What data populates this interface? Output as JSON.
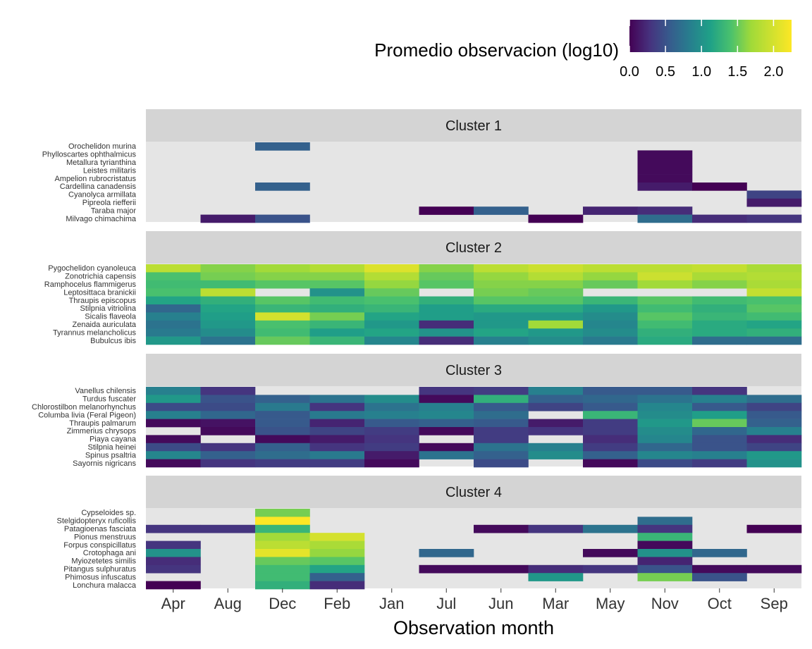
{
  "chart_data": {
    "type": "heatmap",
    "xlabel": "Observation month",
    "months": [
      "Apr",
      "Aug",
      "Dec",
      "Feb",
      "Jan",
      "Jul",
      "Jun",
      "Mar",
      "May",
      "Nov",
      "Oct",
      "Sep"
    ],
    "legend": {
      "title": "Promedio  observacion (log10)",
      "ticks": [
        "0.0",
        "0.5",
        "1.0",
        "1.5",
        "2.0"
      ],
      "tick_values": [
        0,
        0.5,
        1.0,
        1.5,
        2.0
      ],
      "range": [
        0,
        2.25
      ],
      "colormap": "viridis",
      "placement": "top-right"
    },
    "missing_color": "#e5e5e5",
    "strip_color": "#d4d4d4",
    "clusters": [
      {
        "title": "Cluster 1",
        "species": [
          "Orochelidon murina",
          "Phylloscartes ophthalmicus",
          "Metallura tyrianthina",
          "Leistes militaris",
          "Ampelion rubrocristatus",
          "Cardellina canadensis",
          "Cyanolyca armillata",
          "Pipreola riefferii",
          "Taraba major",
          "Milvago chimachima"
        ],
        "values": [
          [
            null,
            null,
            0.6,
            null,
            null,
            null,
            null,
            null,
            null,
            null,
            null,
            null
          ],
          [
            null,
            null,
            null,
            null,
            null,
            null,
            null,
            null,
            null,
            0.05,
            null,
            null
          ],
          [
            null,
            null,
            null,
            null,
            null,
            null,
            null,
            null,
            null,
            0.05,
            null,
            null
          ],
          [
            null,
            null,
            null,
            null,
            null,
            null,
            null,
            null,
            null,
            0.05,
            null,
            null
          ],
          [
            null,
            null,
            null,
            null,
            null,
            null,
            null,
            null,
            null,
            0.05,
            null,
            null
          ],
          [
            null,
            null,
            0.6,
            null,
            null,
            null,
            null,
            null,
            null,
            0.15,
            0.0,
            null
          ],
          [
            null,
            null,
            null,
            null,
            null,
            null,
            null,
            null,
            null,
            null,
            null,
            0.4
          ],
          [
            null,
            null,
            null,
            null,
            null,
            null,
            null,
            null,
            null,
            null,
            null,
            0.15
          ],
          [
            null,
            null,
            null,
            null,
            null,
            0.0,
            0.6,
            null,
            0.2,
            0.25,
            null,
            null
          ],
          [
            null,
            0.15,
            0.5,
            null,
            null,
            null,
            null,
            0.0,
            null,
            0.7,
            0.25,
            0.3
          ]
        ]
      },
      {
        "title": "Cluster 2",
        "species": [
          "Pygochelidon cyanoleuca",
          "Zonotrichia capensis",
          "Ramphocelus flammigerus",
          "Leptosittaca branickii",
          "Thraupis episcopus",
          "Stilpnia vitriolina",
          "Sicalis flaveola",
          "Zenaida auriculata",
          "Tyrannus melancholicus",
          "Bubulcus ibis"
        ],
        "values": [
          [
            1.85,
            1.6,
            1.7,
            1.8,
            2.05,
            1.6,
            1.85,
            1.95,
            1.85,
            1.85,
            1.9,
            1.75
          ],
          [
            1.4,
            1.55,
            1.6,
            1.6,
            1.8,
            1.5,
            1.65,
            1.8,
            1.65,
            1.95,
            1.75,
            1.8
          ],
          [
            1.35,
            1.35,
            1.45,
            1.45,
            1.65,
            1.45,
            1.6,
            1.6,
            1.5,
            1.7,
            1.6,
            1.75
          ],
          [
            1.4,
            1.85,
            null,
            1.0,
            1.5,
            null,
            1.55,
            1.5,
            null,
            null,
            null,
            1.9
          ],
          [
            1.15,
            1.25,
            1.45,
            1.35,
            1.4,
            1.25,
            1.45,
            1.45,
            1.3,
            1.45,
            1.35,
            1.4
          ],
          [
            0.65,
            1.15,
            1.3,
            1.25,
            1.3,
            1.1,
            1.2,
            1.2,
            1.05,
            1.35,
            1.25,
            1.45
          ],
          [
            0.85,
            1.1,
            2.0,
            1.55,
            1.15,
            1.1,
            1.05,
            1.05,
            0.95,
            1.45,
            1.3,
            1.35
          ],
          [
            0.75,
            1.05,
            1.4,
            1.3,
            1.05,
            0.25,
            1.05,
            1.7,
            0.9,
            1.35,
            1.2,
            1.15
          ],
          [
            0.8,
            0.95,
            1.35,
            1.1,
            1.15,
            1.0,
            1.15,
            1.05,
            0.95,
            1.25,
            1.2,
            1.25
          ],
          [
            1.05,
            0.75,
            1.5,
            1.3,
            0.9,
            0.25,
            0.85,
            0.95,
            0.8,
            1.2,
            0.7,
            0.7
          ]
        ]
      },
      {
        "title": "Cluster 3",
        "species": [
          "Vanellus chilensis",
          "Turdus fuscater",
          "Chlorostilbon melanorhynchus",
          "Columba livia (Feral Pigeon)",
          "Thraupis palmarum",
          "Zimmerius chrysops",
          "Piaya cayana",
          "Stilpnia heinei",
          "Spinus psaltria",
          "Sayornis nigricans"
        ],
        "values": [
          [
            0.85,
            0.3,
            null,
            null,
            null,
            0.3,
            0.35,
            0.85,
            0.55,
            0.55,
            0.3,
            null
          ],
          [
            1.05,
            0.5,
            0.6,
            0.75,
            0.95,
            0.05,
            1.25,
            0.6,
            0.65,
            0.75,
            0.85,
            0.7
          ],
          [
            0.45,
            0.45,
            0.8,
            0.3,
            0.75,
            0.85,
            0.55,
            0.4,
            0.55,
            0.9,
            0.55,
            0.4
          ],
          [
            0.85,
            0.65,
            0.55,
            0.8,
            0.85,
            0.9,
            0.7,
            null,
            1.3,
            0.95,
            1.1,
            0.55
          ],
          [
            0.05,
            0.1,
            0.55,
            0.2,
            0.55,
            0.6,
            0.55,
            0.15,
            0.35,
            1.05,
            1.5,
            0.6
          ],
          [
            null,
            0.05,
            0.5,
            0.4,
            0.35,
            0.05,
            0.35,
            0.3,
            0.35,
            0.95,
            0.65,
            0.85
          ],
          [
            0.05,
            null,
            0.05,
            0.15,
            0.3,
            null,
            0.35,
            null,
            0.25,
            0.9,
            0.5,
            0.25
          ],
          [
            0.45,
            0.3,
            0.6,
            0.3,
            0.35,
            0.05,
            0.75,
            0.85,
            0.35,
            0.65,
            0.5,
            0.4
          ],
          [
            0.9,
            0.6,
            0.7,
            0.8,
            0.15,
            0.75,
            0.6,
            0.95,
            0.6,
            0.9,
            0.85,
            1.05
          ],
          [
            0.05,
            0.3,
            0.35,
            0.35,
            0.05,
            null,
            0.45,
            null,
            0.05,
            0.45,
            0.35,
            1.0
          ]
        ]
      },
      {
        "title": "Cluster 4",
        "species": [
          "Cypseloides sp.",
          "Stelgidopteryx ruficollis",
          "Patagioenas fasciata",
          "Pionus menstruus",
          "Forpus conspicillatus",
          "Crotophaga ani",
          "Myiozetetes similis",
          "Pitangus sulphuratus",
          "Phimosus infuscatus",
          "Lonchura malacca"
        ],
        "values": [
          [
            null,
            null,
            1.55,
            null,
            null,
            null,
            null,
            null,
            null,
            null,
            null,
            null
          ],
          [
            null,
            null,
            2.25,
            null,
            null,
            null,
            null,
            null,
            null,
            0.7,
            null,
            null
          ],
          [
            0.3,
            0.3,
            1.3,
            null,
            null,
            null,
            0.05,
            0.3,
            0.75,
            0.3,
            null,
            0.0
          ],
          [
            null,
            null,
            1.7,
            2.0,
            null,
            null,
            null,
            null,
            null,
            1.3,
            null,
            null
          ],
          [
            0.3,
            null,
            1.85,
            1.75,
            null,
            null,
            null,
            null,
            null,
            0.05,
            null,
            null
          ],
          [
            1.0,
            null,
            2.1,
            1.65,
            null,
            0.65,
            null,
            null,
            0.05,
            1.0,
            0.65,
            null
          ],
          [
            0.25,
            null,
            1.5,
            1.45,
            null,
            null,
            null,
            null,
            null,
            0.2,
            null,
            null
          ],
          [
            0.3,
            null,
            1.35,
            1.15,
            null,
            0.05,
            0.05,
            0.25,
            0.3,
            0.5,
            0.05,
            0.05
          ],
          [
            null,
            null,
            1.35,
            0.6,
            null,
            null,
            null,
            1.05,
            null,
            1.55,
            0.5,
            null
          ],
          [
            0.0,
            null,
            1.25,
            0.25,
            null,
            null,
            null,
            null,
            null,
            null,
            null,
            null
          ]
        ]
      }
    ]
  }
}
